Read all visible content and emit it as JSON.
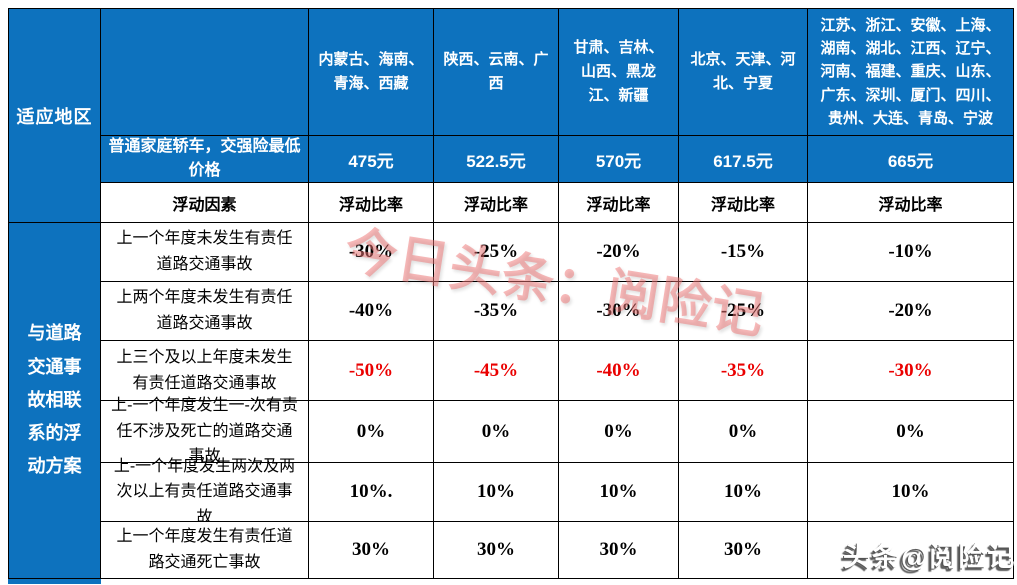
{
  "colors": {
    "header_blue": "#0d72be",
    "grid_line": "#000000",
    "negative_highlight_red": "#ea0000",
    "watermark_pink": "#f07474",
    "text_on_blue": "#ffffff",
    "body_text": "#000000"
  },
  "table": {
    "region_label": "适应地区",
    "plan_label": "与道路交通事故相联系的浮动方案",
    "price_label": "普通家庭轿车，交强险最低价格",
    "regions": [
      "内蒙古、海南、青海、西藏",
      "陕西、云南、广西",
      "甘肃、吉林、山西、黑龙江、新疆",
      "北京、天津、河北、宁夏",
      "江苏、浙江、安徽、上海、湖南、湖北、江西、辽宁、河南、福建、重庆、山东、广东、深圳、厦门、四川、贵州、大连、青岛、宁波"
    ],
    "prices": [
      "475元",
      "522.5元",
      "570元",
      "617.5元",
      "665元"
    ],
    "factor_header": "浮动因素",
    "ratio_headers": [
      "浮动比率",
      "浮动比率",
      "浮动比率",
      "浮动比率",
      "浮动比率"
    ],
    "rows": [
      {
        "factor": "上一个年度未发生有责任道路交通事故",
        "values": [
          "-30%",
          "-25%",
          "-20%",
          "-15%",
          "-10%"
        ]
      },
      {
        "factor": "上两个年度未发生有责任道路交通事故",
        "values": [
          "-40%",
          "-35%",
          "-30%",
          "-25%",
          "-20%"
        ]
      },
      {
        "factor": "上三个及以上年度未发生有责任道路交通事故",
        "values": [
          "-50%",
          "-45%",
          "-40%",
          "-35%",
          "-30%"
        ]
      },
      {
        "factor": "上-一个年度发生一-次有责任不涉及死亡的道路交通事故",
        "values": [
          "0%",
          "0%",
          "0%",
          "0%",
          "0%"
        ]
      },
      {
        "factor": "上-一个年度发生两次及两次以上有责任道路交通事故",
        "values": [
          "10%.",
          "10%",
          "10%",
          "10%",
          "10%"
        ]
      },
      {
        "factor": "上一个年度发生有责任道路交通死亡事故",
        "values": [
          "30%",
          "30%",
          "30%",
          "30%",
          ""
        ]
      }
    ]
  },
  "watermarks": {
    "diagonal": "今日头条：阅险记",
    "byline": "头条@阅险记"
  }
}
